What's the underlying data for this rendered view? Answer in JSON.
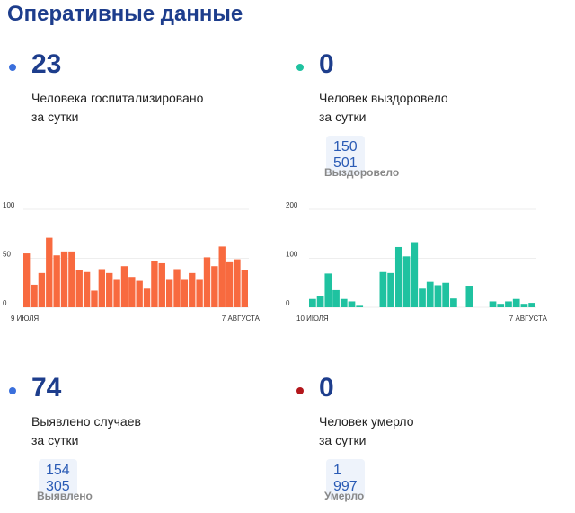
{
  "title": "Оперативные данные",
  "stats": [
    {
      "value": "23",
      "desc1": "Человека госпитализировано",
      "desc2": "за сутки",
      "dot_color": "#3a6fdc"
    },
    {
      "value": "0",
      "desc1": "Человек выздоровело",
      "desc2": "за сутки",
      "total": "150 501",
      "total_label": "Выздоровело",
      "dot_color": "#1fc2a0"
    },
    {
      "value": "74",
      "desc1": "Выявлено случаев",
      "desc2": "за сутки",
      "total": "154 305",
      "total_label": "Выявлено",
      "dot_color": "#3a6fdc"
    },
    {
      "value": "0",
      "desc1": "Человек умерло",
      "desc2": "за сутки",
      "total": "1 997",
      "total_label": "Умерло",
      "dot_color": "#b3161b"
    }
  ],
  "chart_data": [
    {
      "type": "bar",
      "color": "#f86a3f",
      "ylim": [
        0,
        100
      ],
      "yticks": [
        "0",
        "50",
        "100"
      ],
      "x_start": "9 ИЮЛЯ",
      "x_end": "7 АВГУСТА",
      "values": [
        55,
        23,
        35,
        71,
        53,
        57,
        57,
        38,
        36,
        17,
        39,
        35,
        28,
        42,
        31,
        27,
        19,
        47,
        45,
        28,
        39,
        28,
        35,
        28,
        51,
        42,
        62,
        46,
        49,
        38
      ]
    },
    {
      "type": "bar",
      "color": "#1fc2a0",
      "ylim": [
        0,
        200
      ],
      "yticks": [
        "0",
        "100",
        "200"
      ],
      "x_start": "10 ИЮЛЯ",
      "x_end": "7 АВГУСТА",
      "values": [
        17,
        22,
        69,
        35,
        17,
        12,
        3,
        0,
        0,
        72,
        70,
        123,
        104,
        133,
        38,
        52,
        45,
        50,
        18,
        0,
        44,
        0,
        0,
        12,
        7,
        12,
        17,
        7,
        9
      ]
    }
  ]
}
